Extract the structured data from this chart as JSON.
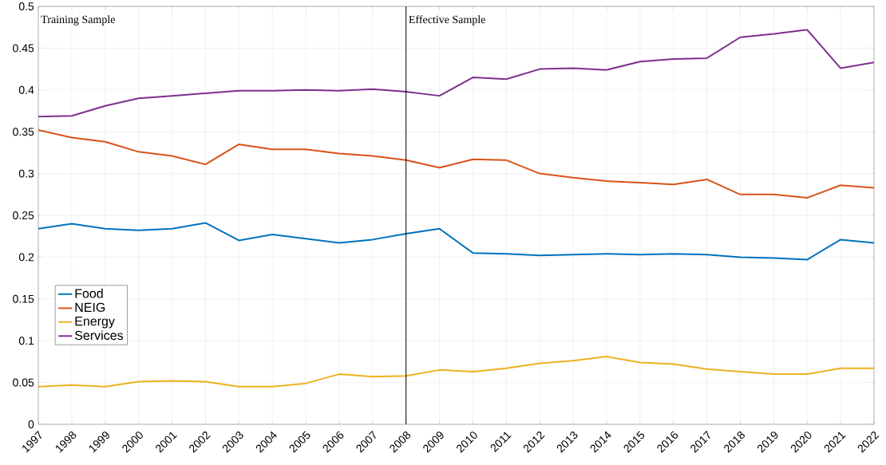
{
  "chart_data": {
    "type": "line",
    "x": [
      1997,
      1998,
      1999,
      2000,
      2001,
      2002,
      2003,
      2004,
      2005,
      2006,
      2007,
      2008,
      2009,
      2010,
      2011,
      2012,
      2013,
      2014,
      2015,
      2016,
      2017,
      2018,
      2019,
      2020,
      2021,
      2022
    ],
    "series": [
      {
        "name": "Food",
        "color": "#0072bd",
        "values": [
          0.234,
          0.24,
          0.234,
          0.232,
          0.234,
          0.241,
          0.22,
          0.227,
          0.222,
          0.217,
          0.221,
          0.228,
          0.234,
          0.205,
          0.204,
          0.202,
          0.203,
          0.204,
          0.203,
          0.204,
          0.203,
          0.2,
          0.199,
          0.197,
          0.221,
          0.217
        ]
      },
      {
        "name": "NEIG",
        "color": "#d95319",
        "values": [
          0.352,
          0.343,
          0.338,
          0.326,
          0.321,
          0.311,
          0.335,
          0.329,
          0.329,
          0.324,
          0.321,
          0.316,
          0.307,
          0.317,
          0.316,
          0.3,
          0.295,
          0.291,
          0.289,
          0.287,
          0.293,
          0.275,
          0.275,
          0.271,
          0.286,
          0.283
        ]
      },
      {
        "name": "Energy",
        "color": "#edb120",
        "values": [
          0.045,
          0.047,
          0.045,
          0.051,
          0.052,
          0.051,
          0.045,
          0.045,
          0.049,
          0.06,
          0.057,
          0.058,
          0.065,
          0.063,
          0.067,
          0.073,
          0.076,
          0.081,
          0.074,
          0.072,
          0.066,
          0.063,
          0.06,
          0.06,
          0.067,
          0.067
        ]
      },
      {
        "name": "Services",
        "color": "#7e2f8e",
        "values": [
          0.368,
          0.369,
          0.381,
          0.39,
          0.393,
          0.396,
          0.399,
          0.399,
          0.4,
          0.399,
          0.401,
          0.398,
          0.393,
          0.415,
          0.413,
          0.425,
          0.426,
          0.424,
          0.434,
          0.437,
          0.438,
          0.463,
          0.467,
          0.472,
          0.426,
          0.433
        ]
      }
    ],
    "xlim": [
      1997,
      2022
    ],
    "xticks": [
      1997,
      1998,
      1999,
      2000,
      2001,
      2002,
      2003,
      2004,
      2005,
      2006,
      2007,
      2008,
      2009,
      2010,
      2011,
      2012,
      2013,
      2014,
      2015,
      2016,
      2017,
      2018,
      2019,
      2020,
      2021,
      2022
    ],
    "ylim": [
      0,
      0.5
    ],
    "yticks": [
      0,
      0.05,
      0.1,
      0.15,
      0.2,
      0.25,
      0.3,
      0.35,
      0.4,
      0.45,
      0.5
    ],
    "ref_lines": [
      {
        "axis": "x",
        "value": 2008,
        "color": "#000000"
      }
    ],
    "annotations": [
      "Training Sample",
      "Effective Sample"
    ],
    "grid": true,
    "legend": "bottom left",
    "marker": "none",
    "line_style": "solid"
  }
}
